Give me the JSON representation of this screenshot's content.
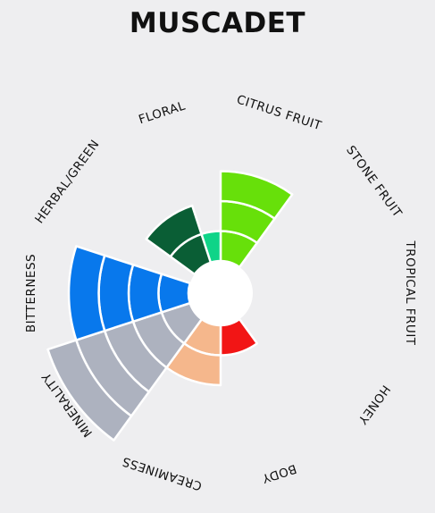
{
  "chart_data": {
    "type": "radial-bar",
    "title": "MUSCADET",
    "max_level": 5,
    "categories": [
      {
        "label": "CITRUS FRUIT",
        "value": 3,
        "color": "#67e00a"
      },
      {
        "label": "STONE FRUIT",
        "value": 0,
        "color": "#67e00a"
      },
      {
        "label": "TROPICAL FRUIT",
        "value": 0,
        "color": "#67e00a"
      },
      {
        "label": "HONEY",
        "value": 0,
        "color": "#f5a623"
      },
      {
        "label": "BODY",
        "value": 1,
        "color": "#f21515"
      },
      {
        "label": "CREAMINESS",
        "value": 2,
        "color": "#f5b78c"
      },
      {
        "label": "MINERALITY",
        "value": 5,
        "color": "#adb2bf"
      },
      {
        "label": "BITTERNESS",
        "value": 4,
        "color": "#0878ec"
      },
      {
        "label": "HERBAL/GREEN",
        "value": 0,
        "color": "#0a5e35"
      },
      {
        "label": "FLORAL",
        "value": 1,
        "color": "#0fd488"
      }
    ],
    "extra_wedges": [
      {
        "between": [
          "HERBAL/GREEN",
          "FLORAL"
        ],
        "value": 2,
        "color": "#0a5e35"
      }
    ]
  }
}
